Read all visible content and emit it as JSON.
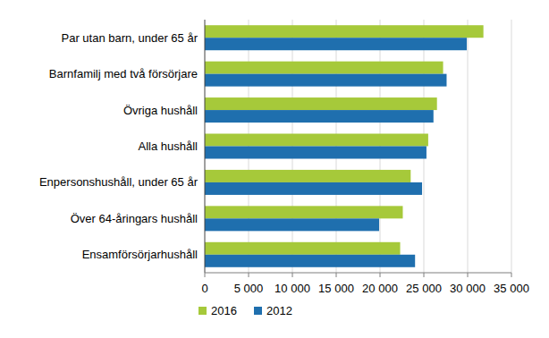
{
  "chart_data": {
    "type": "bar",
    "orientation": "horizontal",
    "categories": [
      "Par utan barn, under 65 år",
      "Barnfamilj med två försörjare",
      "Övriga hushåll",
      "Alla hushåll",
      "Enpersonshushåll, under 65 år",
      "Över 64-åringars hushåll",
      "Ensamförsörjarhushåll"
    ],
    "series": [
      {
        "name": "2016",
        "color": "#a6c93a",
        "values": [
          31800,
          27200,
          26500,
          25500,
          23500,
          22600,
          22300
        ]
      },
      {
        "name": "2012",
        "color": "#1f6fae",
        "values": [
          29900,
          27600,
          26100,
          25300,
          24800,
          19900,
          24000
        ]
      }
    ],
    "xlim": [
      0,
      35000
    ],
    "xticks": [
      0,
      {
        "value": 5000,
        "label": "5 000"
      },
      {
        "value": 10000,
        "label": "10 000"
      },
      {
        "value": 15000,
        "label": "15 000"
      },
      {
        "value": 20000,
        "label": "20 000"
      },
      {
        "value": 25000,
        "label": "25 000"
      },
      {
        "value": 30000,
        "label": "30 000"
      },
      {
        "value": 35000,
        "label": "35 000"
      }
    ],
    "grid": true,
    "legend": "bottom"
  }
}
